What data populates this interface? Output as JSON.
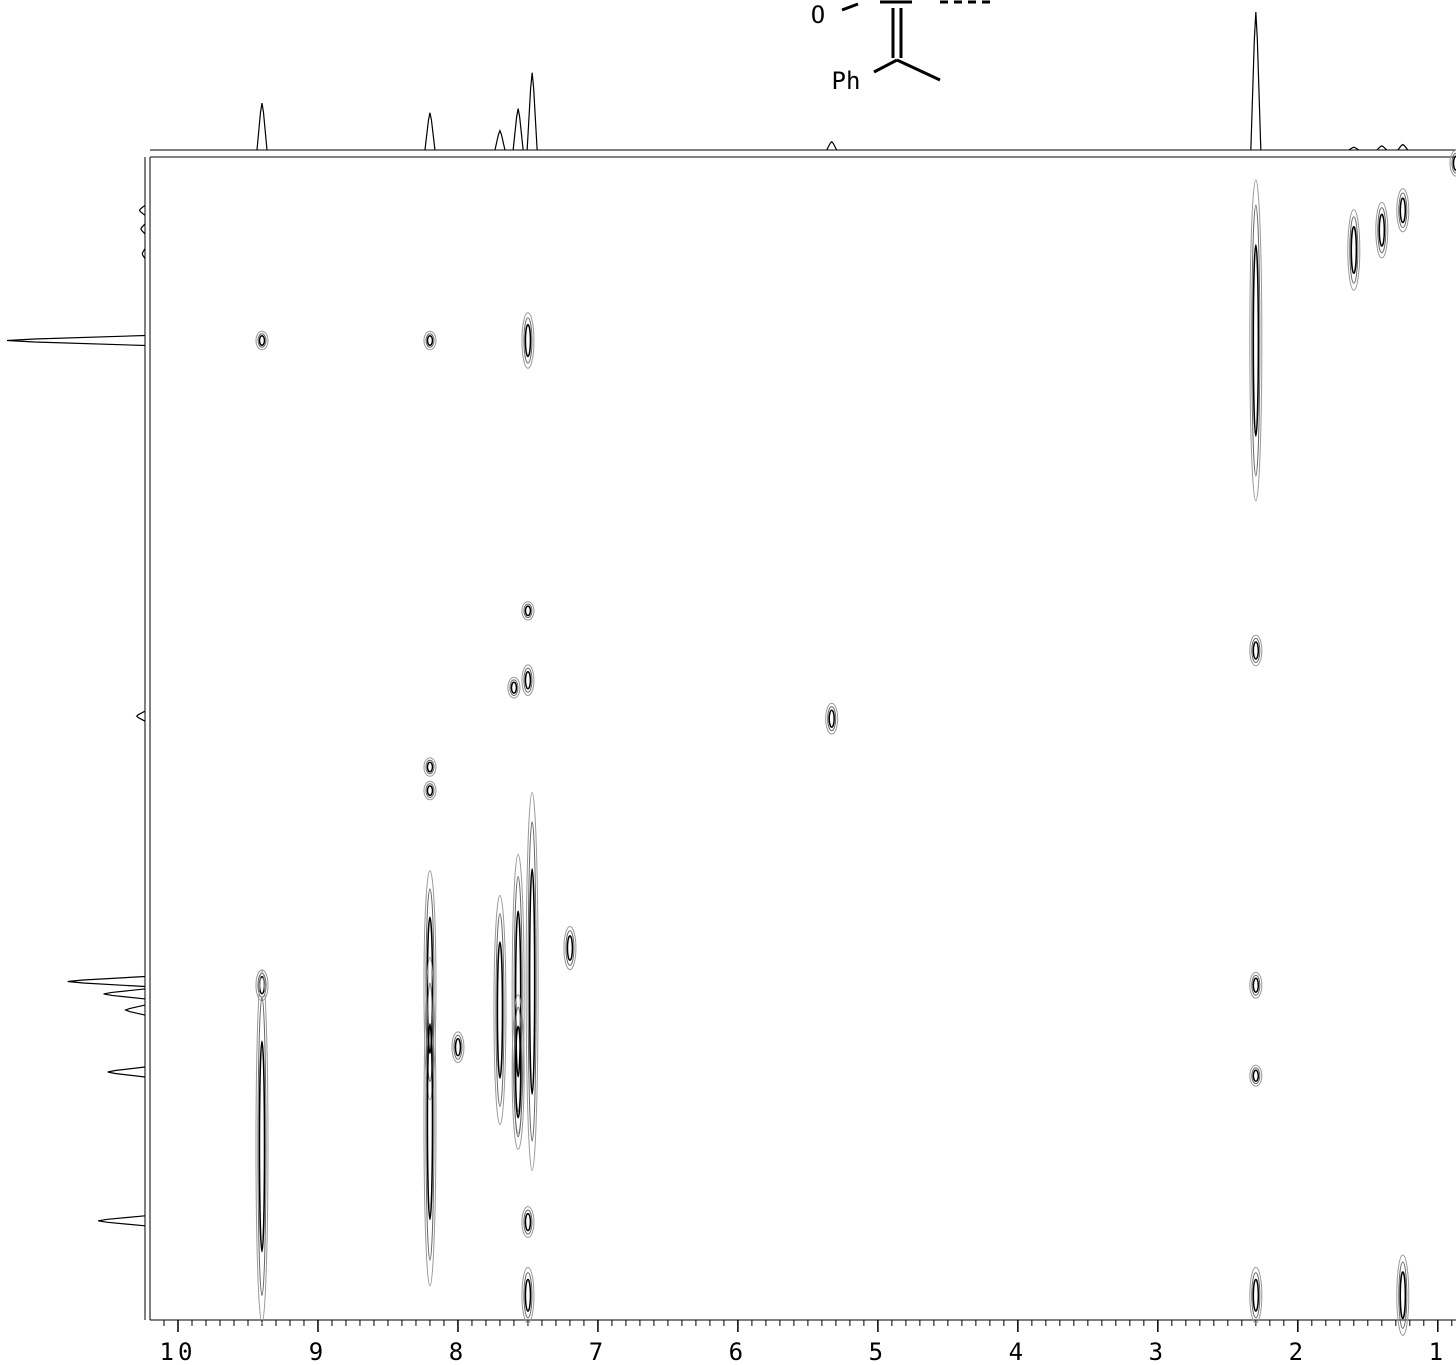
{
  "chart_data": {
    "type": "contour",
    "structure": {
      "labels": [
        "O",
        "Ph"
      ]
    },
    "xlim": [
      10.2,
      0.87
    ],
    "xticks": [
      10,
      9,
      8,
      7,
      6,
      5,
      4,
      3,
      2,
      1
    ],
    "xminor_step": 0.1,
    "ylim": [
      0.82,
      10.2
    ],
    "spectrum": {
      "x": [
        9.4,
        8.2,
        7.7,
        7.57,
        7.47,
        5.33,
        2.3,
        1.6,
        1.4,
        1.25
      ],
      "heights": [
        34,
        27,
        14,
        30,
        56,
        6,
        100,
        2,
        3,
        4
      ]
    },
    "peaks": {
      "x": [
        9.4,
        8.2,
        7.5,
        2.3,
        1.6,
        1.4,
        1.25,
        0.87,
        7.5,
        7.5,
        7.6,
        5.33,
        8.2,
        8.2,
        2.3,
        2.3,
        2.3,
        9.4,
        8.2,
        7.7,
        7.57,
        7.47,
        7.5,
        7.5,
        1.25,
        9.4,
        8.2,
        7.57,
        2.3,
        7.2,
        8.0
      ],
      "y": [
        2.3,
        2.3,
        2.3,
        2.3,
        1.57,
        1.41,
        1.25,
        0.87,
        4.48,
        5.04,
        5.1,
        5.35,
        5.74,
        5.93,
        4.8,
        7.5,
        8.23,
        7.5,
        7.5,
        7.7,
        7.57,
        7.47,
        9.41,
        10.0,
        10.0,
        8.8,
        8.6,
        8.2,
        10.0,
        7.2,
        8.0
      ],
      "extent": [
        0.05,
        0.05,
        0.2,
        1.27,
        0.3,
        0.2,
        0.15,
        0.08,
        0.05,
        0.1,
        0.06,
        0.1,
        0.05,
        0.05,
        0.1,
        0.08,
        0.06,
        0.1,
        0.9,
        0.9,
        1.1,
        1.5,
        0.1,
        0.2,
        0.3,
        1.4,
        1.3,
        0.6,
        0.2,
        0.15,
        0.1
      ]
    }
  }
}
